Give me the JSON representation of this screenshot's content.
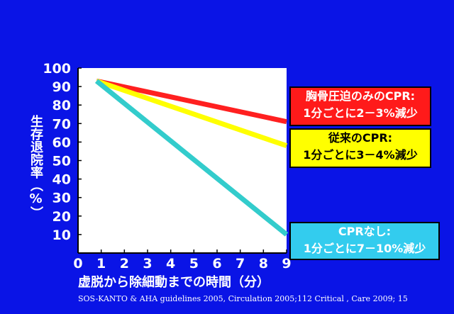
{
  "chart_data": {
    "type": "line",
    "xlabel": "虚脱から除細動までの時間（分）",
    "ylabel": "生存退院率（%）",
    "xlim": [
      0,
      9
    ],
    "ylim": [
      0,
      100
    ],
    "x_ticks": [
      "0",
      "1",
      "2",
      "3",
      "4",
      "5",
      "6",
      "7",
      "8",
      "9"
    ],
    "y_ticks": [
      "10",
      "20",
      "30",
      "40",
      "50",
      "60",
      "70",
      "80",
      "90",
      "100"
    ],
    "grid": false,
    "series": [
      {
        "x": [
          0.8,
          9
        ],
        "values": [
          93,
          71
        ],
        "color": "#FF2020"
      },
      {
        "x": [
          0.8,
          9
        ],
        "values": [
          93,
          58
        ],
        "color": "#FFFF00"
      },
      {
        "x": [
          0.8,
          9
        ],
        "values": [
          93,
          10
        ],
        "color": "#33CCCC"
      }
    ]
  },
  "annotations": {
    "red_line1": "胸骨圧迫のみのCPR:",
    "red_line2": "1分ごとに2－3%減少",
    "yellow_line1": "従来のCPR:",
    "yellow_line2": "1分ごとに3－4%減少",
    "cyan_line1": "CPRなし:",
    "cyan_line2": "1分ごとに7－10%減少"
  },
  "source": "SOS-KANTO & AHA guidelines 2005, Circulation 2005;112 Critical , Care 2009; 15",
  "colors": {
    "background": "#0A14E6",
    "axis": "#000000"
  }
}
